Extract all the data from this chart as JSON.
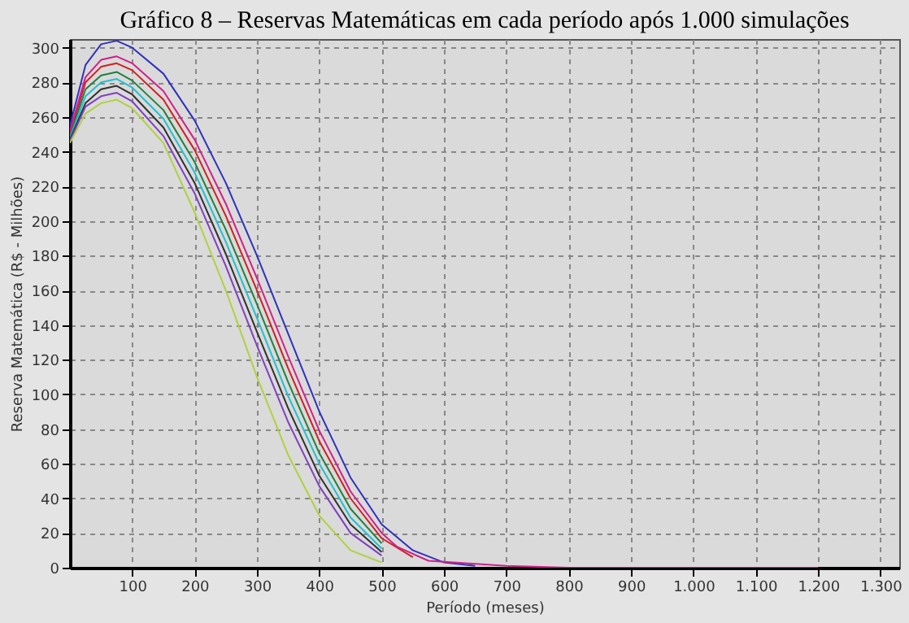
{
  "chart_data": {
    "type": "line",
    "title": "Gráfico 8 – Reservas Matemáticas em cada período após 1.000 simulações",
    "xlabel": "Período (meses)",
    "ylabel": "Reserva Matemática (R$ - Milhões)",
    "x": [
      0,
      25,
      50,
      75,
      100,
      150,
      200,
      250,
      300,
      350,
      400,
      450,
      500
    ],
    "series": [
      {
        "color": "#3030c0",
        "x": [
          0,
          25,
          50,
          75,
          100,
          150,
          200,
          250,
          300,
          350,
          400,
          450,
          500,
          550,
          600,
          650
        ],
        "values": [
          255,
          290,
          302,
          304,
          300,
          285,
          258,
          222,
          180,
          135,
          90,
          52,
          25,
          10,
          3,
          1
        ]
      },
      {
        "color": "#d02020",
        "x": [
          0,
          25,
          50,
          75,
          100,
          150,
          200,
          250,
          300,
          350,
          400,
          450,
          500,
          550
        ],
        "values": [
          250,
          280,
          289,
          291,
          287,
          270,
          241,
          203,
          160,
          115,
          73,
          40,
          17,
          6
        ]
      },
      {
        "color": "#208040",
        "values": [
          249,
          276,
          284,
          286,
          281,
          264,
          234,
          195,
          152,
          107,
          66,
          34,
          14
        ]
      },
      {
        "color": "#20c0d0",
        "values": [
          248,
          272,
          280,
          282,
          277,
          259,
          228,
          188,
          144,
          99,
          60,
          29,
          11
        ]
      },
      {
        "color": "#303030",
        "values": [
          247,
          268,
          276,
          278,
          273,
          254,
          222,
          181,
          136,
          92,
          53,
          25,
          9
        ]
      },
      {
        "color": "#8040c0",
        "values": [
          246,
          266,
          272,
          274,
          269,
          249,
          216,
          174,
          128,
          84,
          47,
          20,
          7
        ]
      },
      {
        "color": "#b0d040",
        "values": [
          245,
          262,
          268,
          270,
          265,
          245,
          205,
          160,
          110,
          65,
          30,
          10,
          3
        ]
      },
      {
        "color": "#d0208a",
        "x": [
          0,
          25,
          50,
          75,
          100,
          150,
          200,
          250,
          300,
          350,
          400,
          450,
          500,
          525,
          575,
          700,
          800,
          1200
        ],
        "values": [
          252,
          283,
          293,
          295,
          291,
          275,
          247,
          210,
          167,
          122,
          79,
          44,
          20,
          12,
          4,
          1,
          0,
          0
        ]
      }
    ],
    "xlim": [
      0,
      1330
    ],
    "ylim": [
      0,
      305
    ],
    "xticks": [
      100,
      200,
      300,
      400,
      500,
      600,
      700,
      800,
      900,
      {
        "value": 1000,
        "label": "1.000"
      },
      {
        "value": 1100,
        "label": "1.100"
      },
      {
        "value": 1200,
        "label": "1.200"
      },
      {
        "value": 1300,
        "label": "1.300"
      }
    ],
    "yticks": [
      0,
      20,
      40,
      60,
      80,
      100,
      120,
      140,
      160,
      180,
      200,
      220,
      240,
      260,
      280,
      300
    ],
    "grid": true,
    "legend": false,
    "marker": "none",
    "line_style": "solid"
  }
}
